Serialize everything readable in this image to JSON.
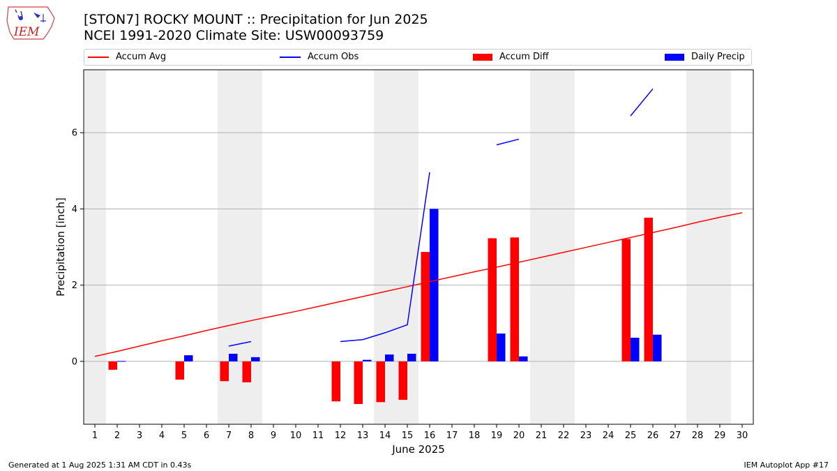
{
  "header": {
    "title_line1": "[STON7] ROCKY MOUNT :: Precipitation for Jun 2025",
    "title_line2": "NCEI 1991-2020 Climate Site: USW00093759"
  },
  "logo": {
    "text": "IEM"
  },
  "legend": [
    {
      "label": "Accum Avg",
      "color": "#ff0000",
      "kind": "line"
    },
    {
      "label": "Accum Obs",
      "color": "#0000ff",
      "kind": "line"
    },
    {
      "label": "Accum Diff",
      "color": "#ff0000",
      "kind": "bar"
    },
    {
      "label": "Daily Precip",
      "color": "#0000ff",
      "kind": "bar"
    }
  ],
  "footer": {
    "left": "Generated at 1 Aug 2025 1:31 AM CDT in 0.43s",
    "right": "IEM Autoplot App #17"
  },
  "chart_data": {
    "type": "bar",
    "xlabel": "June 2025",
    "ylabel": "Precipitation [inch]",
    "xlim": [
      0.5,
      30.5
    ],
    "ylim": [
      -1.65,
      7.65
    ],
    "yticks": [
      0,
      2,
      4,
      6
    ],
    "grid": "y",
    "legend_position": "top",
    "weekend_shading": [
      [
        0.5,
        1.5
      ],
      [
        6.5,
        8.5
      ],
      [
        13.5,
        15.5
      ],
      [
        20.5,
        22.5
      ],
      [
        27.5,
        29.5
      ]
    ],
    "days": [
      1,
      2,
      3,
      4,
      5,
      6,
      7,
      8,
      9,
      10,
      11,
      12,
      13,
      14,
      15,
      16,
      17,
      18,
      19,
      20,
      21,
      22,
      23,
      24,
      25,
      26,
      27,
      28,
      29,
      30
    ],
    "accum_avg": [
      0.13,
      0.26,
      0.4,
      0.54,
      0.67,
      0.81,
      0.94,
      1.07,
      1.19,
      1.31,
      1.44,
      1.57,
      1.7,
      1.83,
      1.96,
      2.09,
      2.22,
      2.35,
      2.47,
      2.6,
      2.73,
      2.86,
      2.99,
      3.12,
      3.25,
      3.38,
      3.51,
      3.65,
      3.78,
      3.9
    ],
    "accum_obs": [
      null,
      null,
      null,
      null,
      null,
      null,
      0.4,
      0.52,
      null,
      null,
      null,
      0.52,
      0.57,
      0.75,
      0.96,
      4.96,
      null,
      null,
      5.68,
      5.83,
      null,
      null,
      null,
      null,
      6.44,
      7.15,
      null,
      null,
      null,
      null
    ],
    "accum_diff": [
      0,
      -0.22,
      0,
      0,
      -0.48,
      0,
      -0.52,
      -0.55,
      0,
      0,
      0,
      -1.05,
      -1.12,
      -1.07,
      -1.01,
      2.87,
      0,
      0,
      3.23,
      3.25,
      0,
      0,
      0,
      0,
      3.21,
      3.77,
      0,
      0,
      0,
      0
    ],
    "daily_precip": [
      0,
      0.01,
      0,
      0,
      0.16,
      0,
      0.2,
      0.11,
      0,
      0,
      0,
      0,
      0.04,
      0.18,
      0.2,
      4.0,
      0,
      0,
      0.73,
      0.13,
      0,
      0,
      0,
      0,
      0.62,
      0.7,
      0,
      0,
      0,
      0
    ],
    "series": [
      {
        "name": "Accum Avg",
        "color": "#ff0000"
      },
      {
        "name": "Accum Obs",
        "color": "#0000ff"
      },
      {
        "name": "Accum Diff",
        "color": "#ff0000"
      },
      {
        "name": "Daily Precip",
        "color": "#0000ff"
      }
    ]
  }
}
